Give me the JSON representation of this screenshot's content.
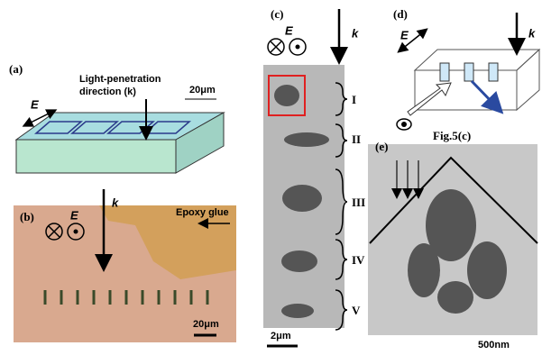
{
  "panels": {
    "a": {
      "label": "(a)",
      "field": "E",
      "caption_line1": "Light-penetration",
      "caption_line2": "direction (k)",
      "scale": "20μm"
    },
    "b": {
      "label": "(b)",
      "field": "E",
      "wave": "k",
      "note": "Epoxy glue",
      "scale": "20μm"
    },
    "c": {
      "label": "(c)",
      "field": "E",
      "wave": "k",
      "regions": [
        "I",
        "II",
        "III",
        "IV",
        "V"
      ],
      "scale": "2μm"
    },
    "d": {
      "label": "(d)",
      "field": "E",
      "wave": "k",
      "ref": "Fig.5(c)"
    },
    "e": {
      "label": "(e)",
      "scale": "500nm"
    }
  }
}
